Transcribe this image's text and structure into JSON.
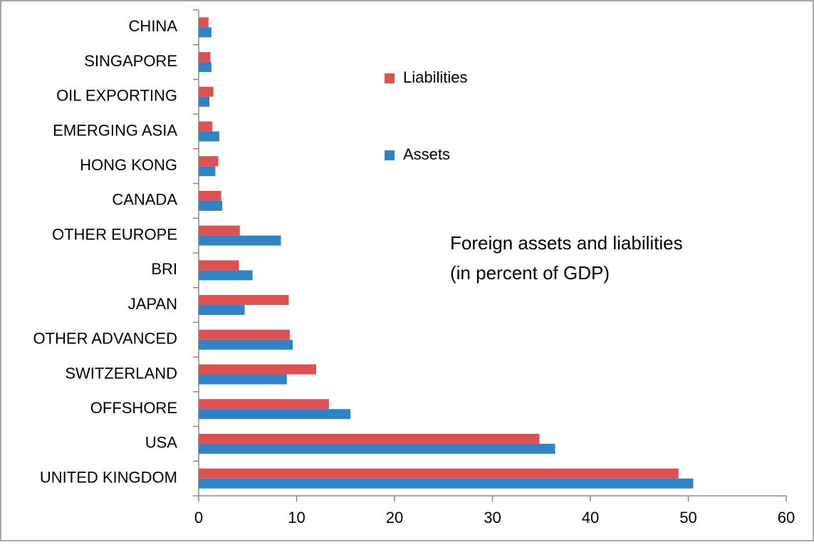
{
  "chart_data": {
    "type": "barh",
    "annotations": [
      "Foreign assets and liabilities",
      "(in percent of GDP)"
    ],
    "categories": [
      "CHINA",
      "SINGAPORE",
      "OIL EXPORTING",
      "EMERGING ASIA",
      "HONG KONG",
      "CANADA",
      "OTHER EUROPE",
      "BRI",
      "JAPAN",
      "OTHER ADVANCED",
      "SWITZERLAND",
      "OFFSHORE",
      "USA",
      "UNITED KINGDOM"
    ],
    "series": [
      {
        "name": "Liabilities",
        "color": "#e0504f",
        "values": [
          1.0,
          1.2,
          1.5,
          1.4,
          2.0,
          2.3,
          4.2,
          4.1,
          9.2,
          9.3,
          12.0,
          13.3,
          34.8,
          49.0
        ]
      },
      {
        "name": "Assets",
        "color": "#2f83c7",
        "values": [
          1.3,
          1.3,
          1.1,
          2.1,
          1.7,
          2.4,
          8.4,
          5.5,
          4.7,
          9.6,
          9.0,
          15.5,
          36.4,
          50.5
        ]
      }
    ],
    "xlim": [
      0,
      60
    ],
    "xticks": [
      0,
      10,
      20,
      30,
      40,
      50,
      60
    ],
    "grid": false
  }
}
